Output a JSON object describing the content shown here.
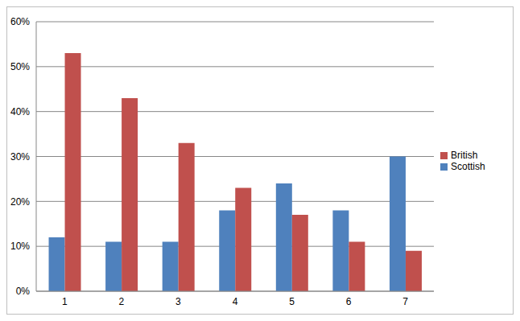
{
  "chart_data": {
    "type": "bar",
    "categories": [
      "1",
      "2",
      "3",
      "4",
      "5",
      "6",
      "7"
    ],
    "series": [
      {
        "name": "Scottish",
        "color": "#4f81bd",
        "values": [
          12,
          11,
          11,
          18,
          24,
          18,
          30
        ]
      },
      {
        "name": "British",
        "color": "#c0504d",
        "values": [
          53,
          43,
          33,
          23,
          17,
          11,
          9
        ]
      }
    ],
    "ylim": [
      0,
      60
    ],
    "yticks": [
      {
        "value": 0,
        "label": "0%"
      },
      {
        "value": 10,
        "label": "10%"
      },
      {
        "value": 20,
        "label": "20%"
      },
      {
        "value": 30,
        "label": "30%"
      },
      {
        "value": 40,
        "label": "40%"
      },
      {
        "value": 50,
        "label": "50%"
      },
      {
        "value": 60,
        "label": "60%"
      }
    ],
    "grid": true,
    "legend": "right"
  }
}
